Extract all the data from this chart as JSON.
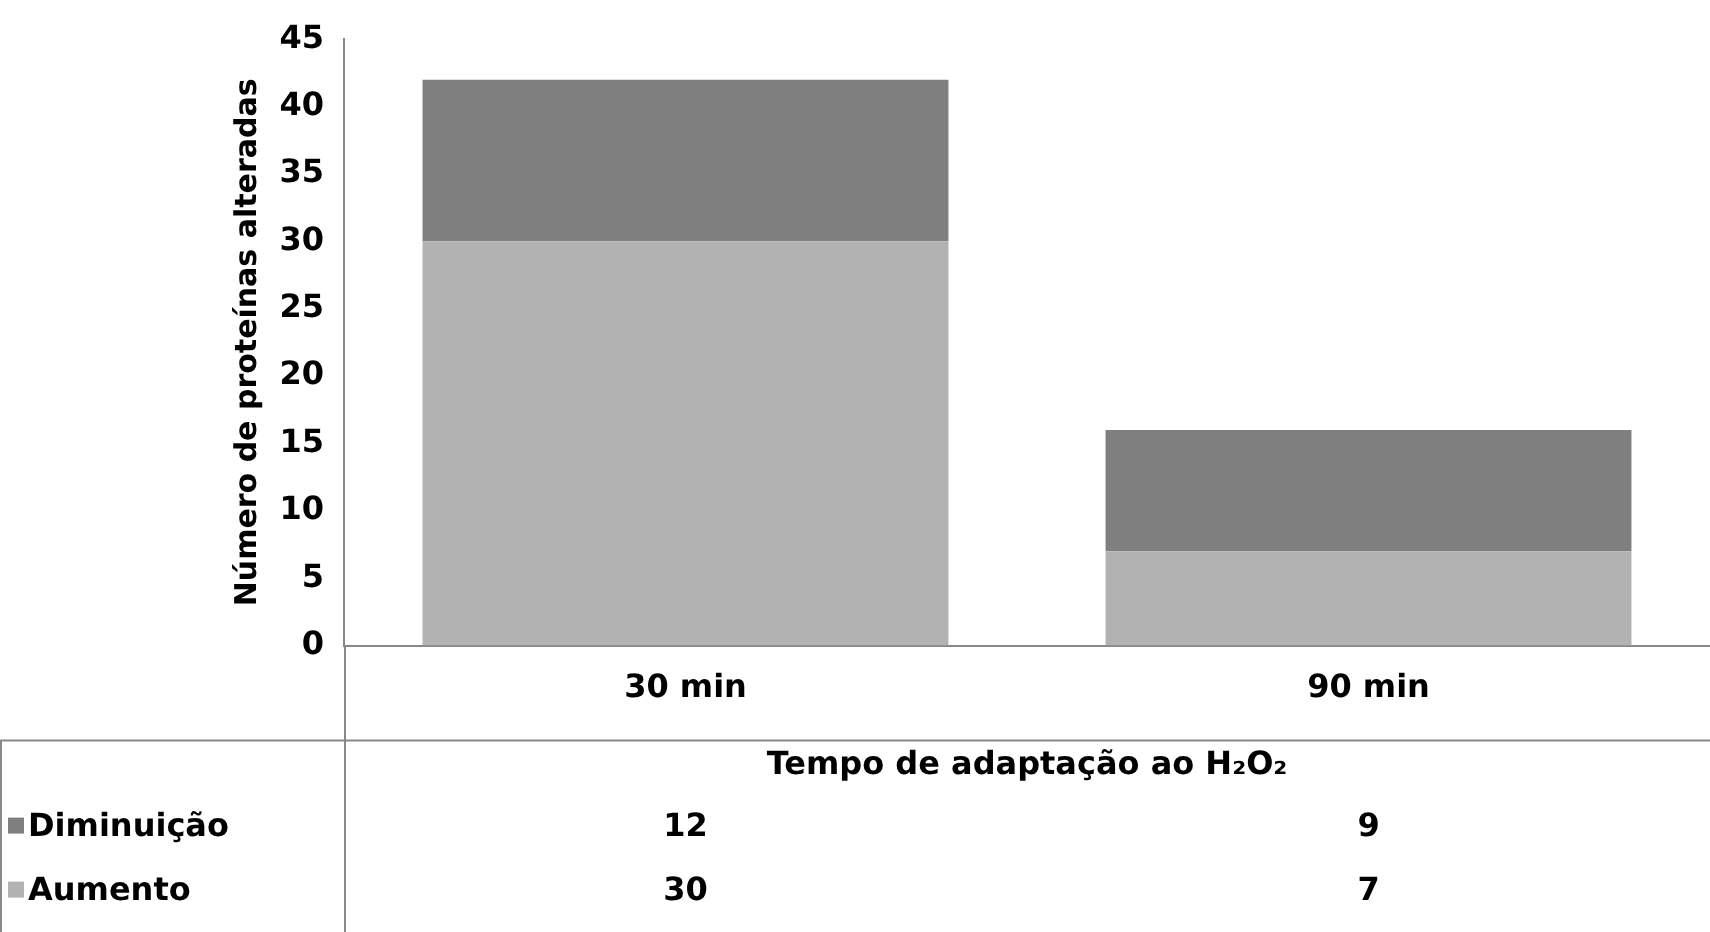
{
  "chart_data": {
    "type": "bar",
    "stacked": true,
    "ylabel": "Número de proteínas alteradas",
    "xlabel": "Tempo de adaptação ao H₂O₂",
    "categories": [
      "30 min",
      "90 min"
    ],
    "series": [
      {
        "name": "Aumento",
        "color": "#b2b2b2",
        "values": [
          30,
          7
        ]
      },
      {
        "name": "Diminuição",
        "color": "#7f7f7f",
        "values": [
          12,
          9
        ]
      }
    ],
    "ylim": [
      0,
      45
    ],
    "yticks": [
      0,
      5,
      10,
      15,
      20,
      25,
      30,
      35,
      40,
      45
    ],
    "grid": false,
    "legend": "bottom left",
    "data_labels": true
  }
}
